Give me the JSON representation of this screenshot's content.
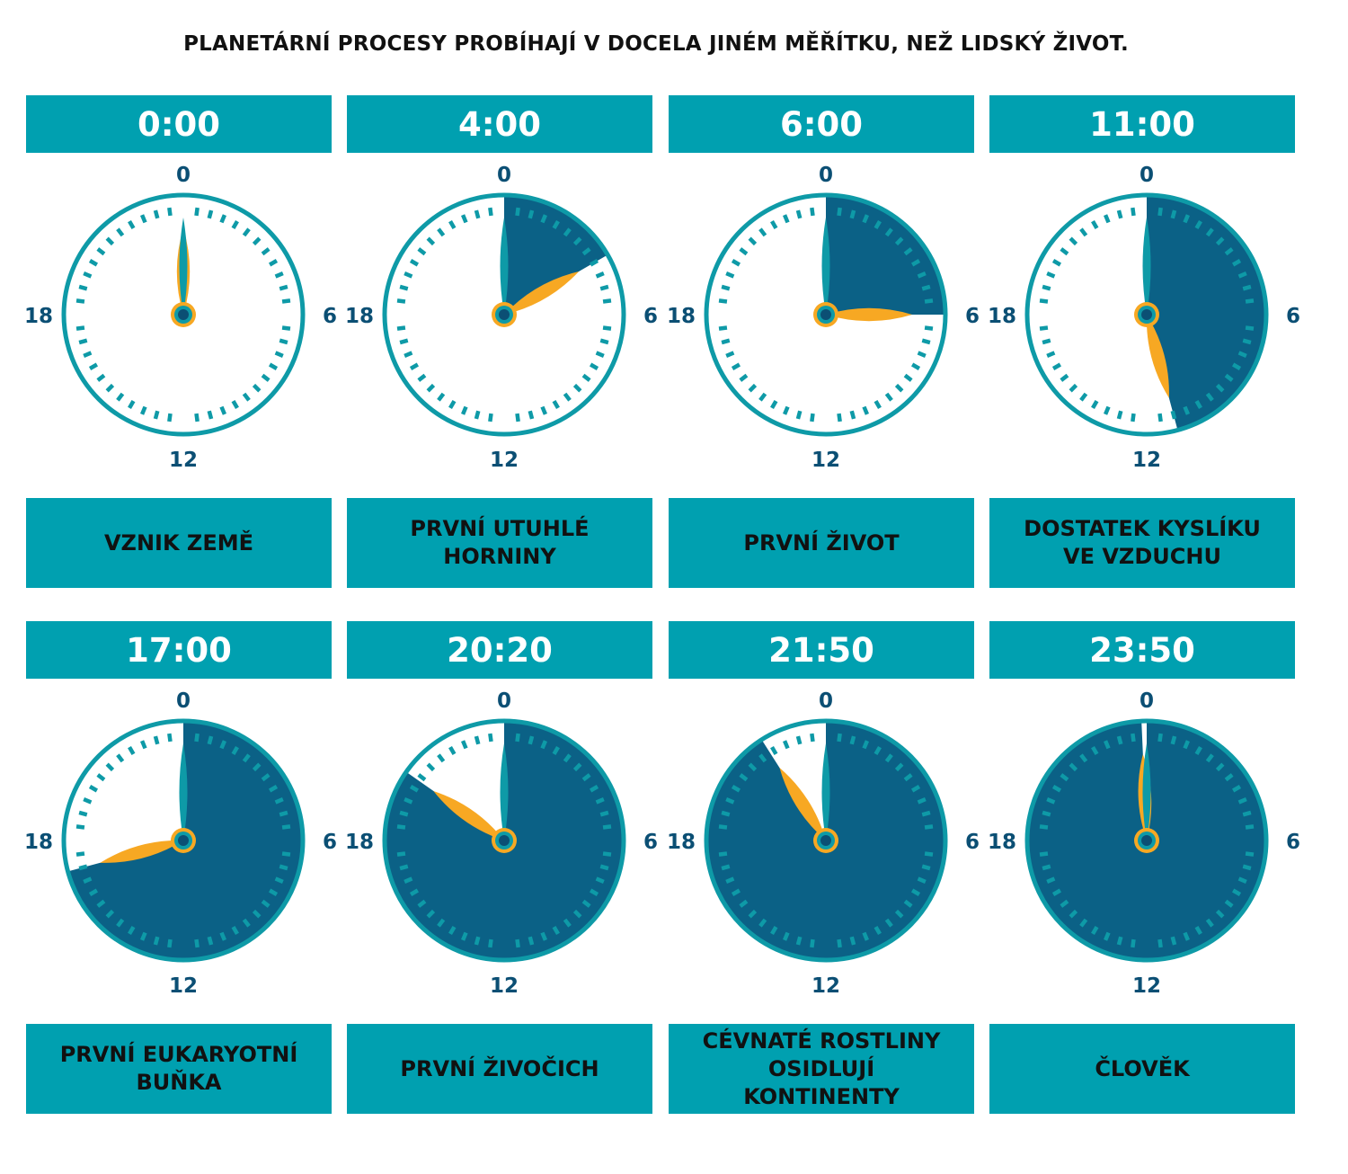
{
  "title": "PLANETÁRNÍ PROCESY PROBÍHAJÍ V DOCELA JINÉM MĚŘÍTKU, NEŽ LIDSKÝ ŽIVOT.",
  "dial_labels": {
    "top": "0",
    "right": "6",
    "bottom": "12",
    "left": "18"
  },
  "colors": {
    "box": "#00a0b0",
    "ring": "#0e9aa7",
    "sector": "#0b6186",
    "hand_long": "#0e9aa7",
    "hand_short": "#f7a823",
    "center": "#0b4f74",
    "title_text": "#111111"
  },
  "clocks": [
    {
      "time": "0:00",
      "label": "VZNIK ZEMĚ",
      "hours": 0
    },
    {
      "time": "4:00",
      "label": "PRVNÍ UTUHLÉ\nHORNINY",
      "hours": 4
    },
    {
      "time": "6:00",
      "label": "PRVNÍ ŽIVOT",
      "hours": 6
    },
    {
      "time": "11:00",
      "label": "DOSTATEK KYSLÍKU\nVE VZDUCHU",
      "hours": 11
    },
    {
      "time": "17:00",
      "label": "PRVNÍ EUKARYOTNÍ\nBUŇKA",
      "hours": 17
    },
    {
      "time": "20:20",
      "label": "PRVNÍ ŽIVOČICH",
      "hours": 20.333
    },
    {
      "time": "21:50",
      "label": "CÉVNATÉ ROSTLINY\nOSIDLUJÍ KONTINENTY",
      "hours": 21.833
    },
    {
      "time": "23:50",
      "label": "ČLOVĚK",
      "hours": 23.833
    }
  ]
}
